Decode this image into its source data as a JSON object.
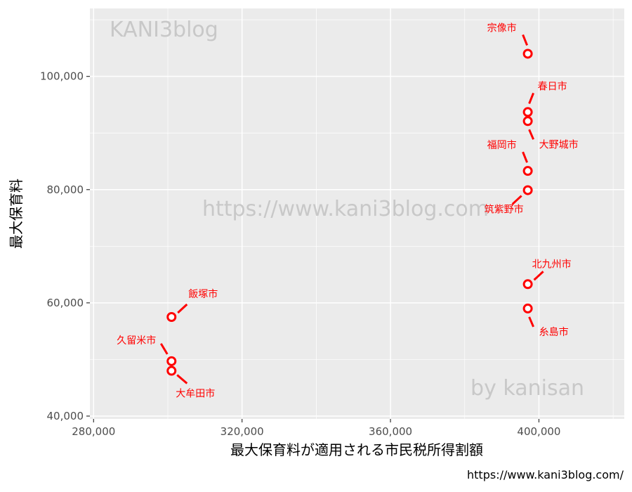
{
  "chart_data": {
    "type": "scatter",
    "xlabel": "最大保育料が適用される市民税所得割額",
    "ylabel": "最大保育料",
    "xlim": [
      279000,
      423000
    ],
    "ylim": [
      39500,
      112000
    ],
    "x_ticks": [
      280000,
      320000,
      360000,
      400000
    ],
    "x_tick_labels": [
      "280,000",
      "320,000",
      "360,000",
      "400,000"
    ],
    "y_ticks": [
      40000,
      60000,
      80000,
      100000
    ],
    "y_tick_labels": [
      "40,000",
      "60,000",
      "80,000",
      "100,000"
    ],
    "grid": true,
    "colors": {
      "point": "#ff0000",
      "label": "#ff0000",
      "panel": "#ebebeb",
      "grid": "#ffffff"
    },
    "points": [
      {
        "label": "宗像市",
        "x": 397000,
        "y": 104000,
        "dir": "up-left"
      },
      {
        "label": "春日市",
        "x": 397000,
        "y": 93700,
        "dir": "up-right"
      },
      {
        "label": "大野城市",
        "x": 397000,
        "y": 92100,
        "dir": "down-right"
      },
      {
        "label": "福岡市",
        "x": 397000,
        "y": 83300,
        "dir": "up-left"
      },
      {
        "label": "筑紫野市",
        "x": 397000,
        "y": 79900,
        "dir": "down-left"
      },
      {
        "label": "北九州市",
        "x": 397000,
        "y": 63300,
        "dir": "up-right"
      },
      {
        "label": "糸島市",
        "x": 397000,
        "y": 59000,
        "dir": "down-right"
      },
      {
        "label": "飯塚市",
        "x": 301000,
        "y": 57500,
        "dir": "up-right"
      },
      {
        "label": "久留米市",
        "x": 301000,
        "y": 49700,
        "dir": "up-left"
      },
      {
        "label": "大牟田市",
        "x": 301000,
        "y": 48000,
        "dir": "down-right"
      }
    ]
  },
  "watermarks": {
    "top_left": "KANI3blog",
    "center": "https://www.kani3blog.com",
    "bottom_right": "by kanisan"
  },
  "footer_url": "https://www.kani3blog.com/"
}
